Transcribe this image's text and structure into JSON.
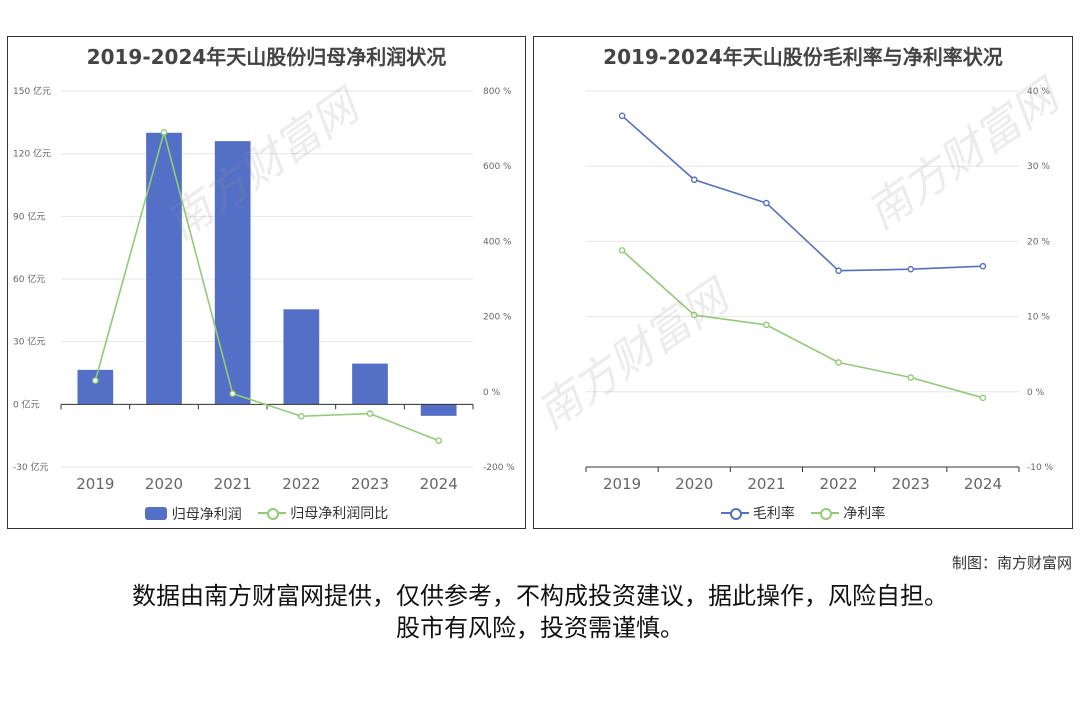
{
  "colors": {
    "bar": "#5470c6",
    "gross": "#5470c6",
    "net": "#91cc75",
    "axis_text": "#666666"
  },
  "credit": "制图：南方财富网",
  "disclaimer_line1": "数据由南方财富网提供，仅供参考，不构成投资建议，据此操作，风险自担。",
  "disclaimer_line2": "股市有风险，投资需谨慎。",
  "watermark_text": "南方财富网",
  "watermark_url": "southmoney.com",
  "chart_data": [
    {
      "type": "bar",
      "title": "2019-2024年天山股份归母净利润状况",
      "categories": [
        "2019",
        "2020",
        "2021",
        "2022",
        "2023",
        "2024"
      ],
      "series": [
        {
          "name": "归母净利润",
          "type": "bar",
          "axis": "left",
          "values": [
            16.5,
            130,
            126,
            45.5,
            19.5,
            -5.5
          ]
        },
        {
          "name": "归母净利润同比",
          "type": "line",
          "axis": "right",
          "values": [
            30,
            690,
            -5,
            -65,
            -58,
            -130
          ]
        }
      ],
      "y_left": {
        "ticks": [
          -30,
          0,
          30,
          60,
          90,
          120,
          150
        ],
        "tick_labels": [
          "-30 亿元",
          "0 亿元",
          "30 亿元",
          "60 亿元",
          "90 亿元",
          "120 亿元",
          "150 亿元"
        ],
        "ylim": [
          -30,
          150
        ]
      },
      "y_right": {
        "ticks": [
          -200,
          0,
          200,
          400,
          600,
          800
        ],
        "tick_labels": [
          "-200 %",
          "0 %",
          "200 %",
          "400 %",
          "600 %",
          "800 %"
        ],
        "ylim": [
          -200,
          800
        ]
      },
      "legend": [
        "归母净利润",
        "归母净利润同比"
      ],
      "legend_position": "bottom",
      "grid": true
    },
    {
      "type": "line",
      "title": "2019-2024年天山股份毛利率与净利率状况",
      "categories": [
        "2019",
        "2020",
        "2021",
        "2022",
        "2023",
        "2024"
      ],
      "series": [
        {
          "name": "毛利率",
          "values": [
            36.7,
            28.2,
            25.1,
            16.1,
            16.3,
            16.7
          ]
        },
        {
          "name": "净利率",
          "values": [
            18.8,
            10.2,
            8.9,
            3.9,
            1.9,
            -0.8
          ]
        }
      ],
      "y_right": {
        "ticks": [
          -10,
          0,
          10,
          20,
          30,
          40
        ],
        "tick_labels": [
          "-10 %",
          "0 %",
          "10 %",
          "20 %",
          "30 %",
          "40 %"
        ],
        "ylim": [
          -10,
          40
        ]
      },
      "legend": [
        "毛利率",
        "净利率"
      ],
      "legend_position": "bottom",
      "grid": true
    }
  ]
}
